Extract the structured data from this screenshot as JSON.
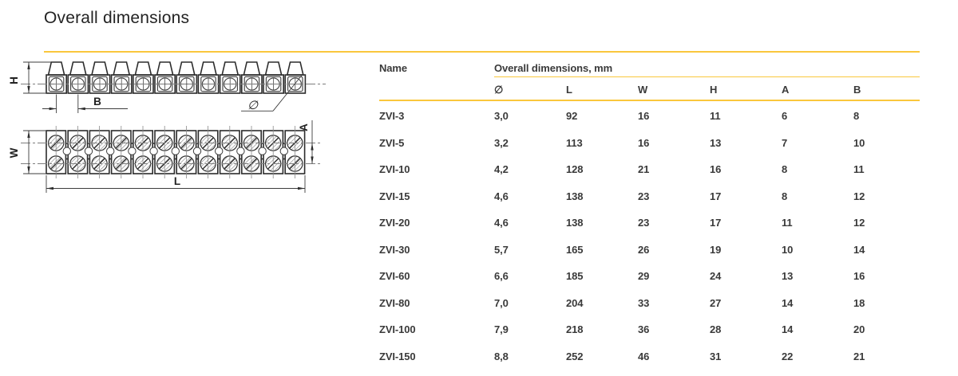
{
  "title": "Overall dimensions",
  "table": {
    "name_header": "Name",
    "group_header": "Overall dimensions, mm",
    "columns": [
      "∅",
      "L",
      "W",
      "H",
      "A",
      "B"
    ],
    "rows": [
      {
        "name": "ZVI-3",
        "values": [
          "3,0",
          "92",
          "16",
          "11",
          "6",
          "8"
        ]
      },
      {
        "name": "ZVI-5",
        "values": [
          "3,2",
          "113",
          "16",
          "13",
          "7",
          "10"
        ]
      },
      {
        "name": "ZVI-10",
        "values": [
          "4,2",
          "128",
          "21",
          "16",
          "8",
          "11"
        ]
      },
      {
        "name": "ZVI-15",
        "values": [
          "4,6",
          "138",
          "23",
          "17",
          "8",
          "12"
        ]
      },
      {
        "name": "ZVI-20",
        "values": [
          "4,6",
          "138",
          "23",
          "17",
          "11",
          "12"
        ]
      },
      {
        "name": "ZVI-30",
        "values": [
          "5,7",
          "165",
          "26",
          "19",
          "10",
          "14"
        ]
      },
      {
        "name": "ZVI-60",
        "values": [
          "6,6",
          "185",
          "29",
          "24",
          "13",
          "16"
        ]
      },
      {
        "name": "ZVI-80",
        "values": [
          "7,0",
          "204",
          "33",
          "27",
          "14",
          "18"
        ]
      },
      {
        "name": "ZVI-100",
        "values": [
          "7,9",
          "218",
          "36",
          "28",
          "14",
          "20"
        ]
      },
      {
        "name": "ZVI-150",
        "values": [
          "8,8",
          "252",
          "46",
          "31",
          "22",
          "21"
        ]
      }
    ]
  },
  "drawing": {
    "labels": {
      "h": "H",
      "b": "B",
      "diameter": "∅",
      "w": "W",
      "l": "L",
      "a": "A"
    }
  },
  "colors": {
    "accent_yellow": "#FAC73C",
    "text": "#3a3a3a"
  }
}
